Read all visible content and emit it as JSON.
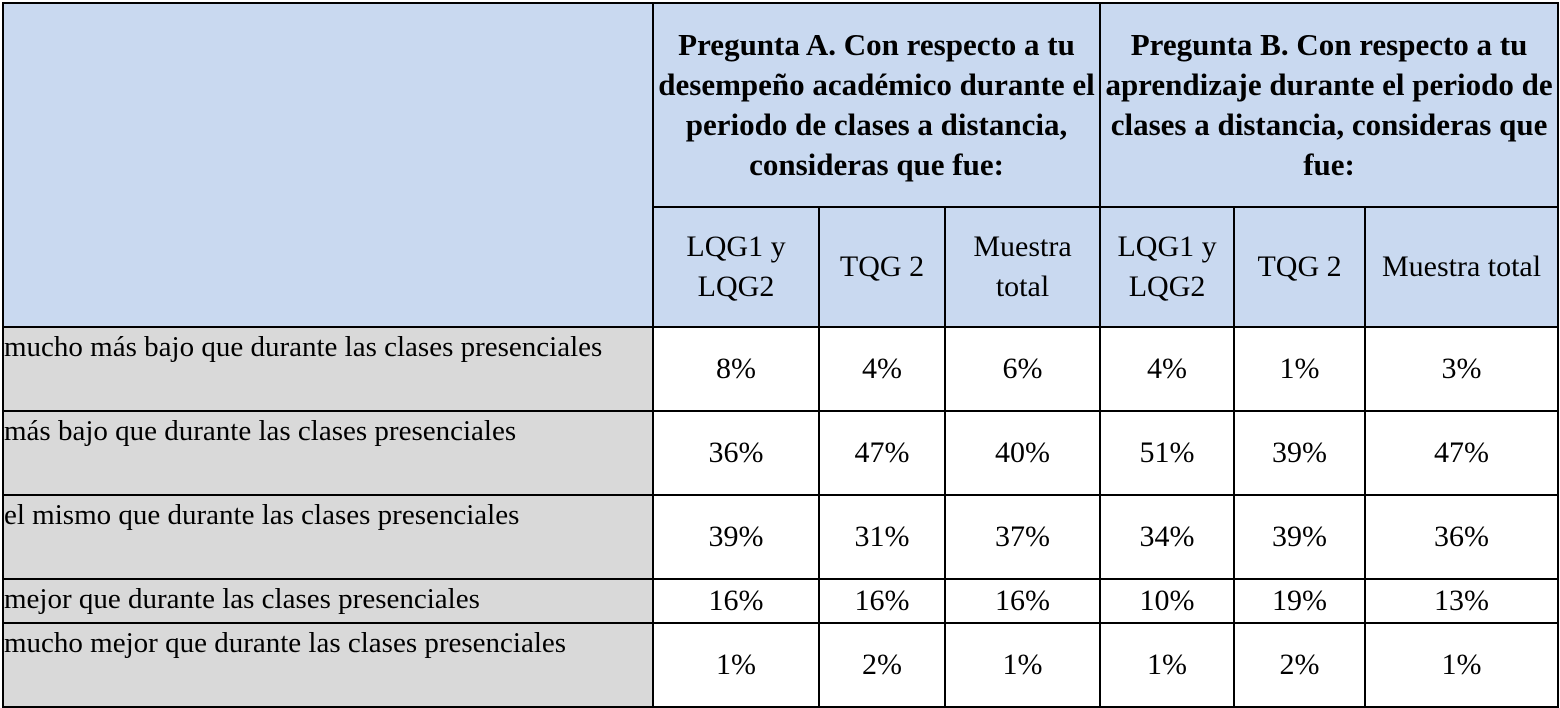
{
  "header": {
    "question_a": "Pregunta A. Con respecto a tu desempeño académico durante el periodo de clases a distancia, consideras que fue:",
    "question_b": "Pregunta B. Con respecto a tu aprendizaje durante el periodo de clases a distancia, consideras que fue:",
    "subcolumns": [
      "LQG1 y LQG2",
      "TQG 2",
      "Muestra total",
      "LQG1 y LQG2",
      "TQG 2",
      "Muestra total"
    ]
  },
  "rows": [
    {
      "label": "mucho más bajo que durante las clases presenciales",
      "values": [
        "8%",
        "4%",
        "6%",
        "4%",
        "1%",
        "3%"
      ]
    },
    {
      "label": "más bajo que durante las clases presenciales",
      "values": [
        "36%",
        "47%",
        "40%",
        "51%",
        "39%",
        "47%"
      ]
    },
    {
      "label": "el mismo que durante las clases presenciales",
      "values": [
        "39%",
        "31%",
        "37%",
        "34%",
        "39%",
        "36%"
      ]
    },
    {
      "label": "mejor que durante las clases presenciales",
      "values": [
        "16%",
        "16%",
        "16%",
        "10%",
        "19%",
        "13%"
      ]
    },
    {
      "label": "mucho mejor que durante las clases presenciales",
      "values": [
        "1%",
        "2%",
        "1%",
        "1%",
        "2%",
        "1%"
      ]
    }
  ],
  "colors": {
    "header_bg": "#c9d9f0",
    "label_bg": "#d9d9d9",
    "cell_bg": "#ffffff",
    "border": "#000000"
  }
}
